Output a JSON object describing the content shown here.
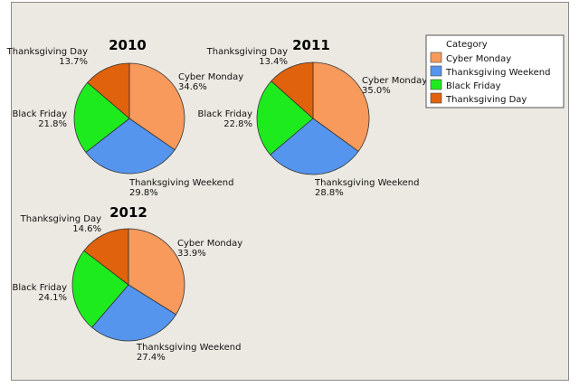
{
  "chart_data": {
    "type": "pie",
    "legend": {
      "title": "Category",
      "placement": "top-right",
      "entries": [
        "Cyber Monday",
        "Thanksgiving Weekend",
        "Black Friday",
        "Thanksgiving Day"
      ]
    },
    "colors": {
      "Cyber Monday": "#F79A5C",
      "Thanksgiving Weekend": "#5595EE",
      "Black Friday": "#1EEB1E",
      "Thanksgiving Day": "#E0620C"
    },
    "charts": [
      {
        "title": "2010",
        "slices": [
          {
            "label": "Cyber Monday",
            "value": 34.6,
            "text": "34.6%"
          },
          {
            "label": "Thanksgiving Weekend",
            "value": 29.8,
            "text": "29.8%"
          },
          {
            "label": "Black Friday",
            "value": 21.8,
            "text": "21.8%"
          },
          {
            "label": "Thanksgiving Day",
            "value": 13.7,
            "text": "13.7%"
          }
        ]
      },
      {
        "title": "2011",
        "slices": [
          {
            "label": "Cyber Monday",
            "value": 35.0,
            "text": "35.0%"
          },
          {
            "label": "Thanksgiving Weekend",
            "value": 28.8,
            "text": "28.8%"
          },
          {
            "label": "Black Friday",
            "value": 22.8,
            "text": "22.8%"
          },
          {
            "label": "Thanksgiving Day",
            "value": 13.4,
            "text": "13.4%"
          }
        ]
      },
      {
        "title": "2012",
        "slices": [
          {
            "label": "Cyber Monday",
            "value": 33.9,
            "text": "33.9%"
          },
          {
            "label": "Thanksgiving Weekend",
            "value": 27.4,
            "text": "27.4%"
          },
          {
            "label": "Black Friday",
            "value": 24.1,
            "text": "24.1%"
          },
          {
            "label": "Thanksgiving Day",
            "value": 14.6,
            "text": "14.6%"
          }
        ]
      }
    ]
  }
}
